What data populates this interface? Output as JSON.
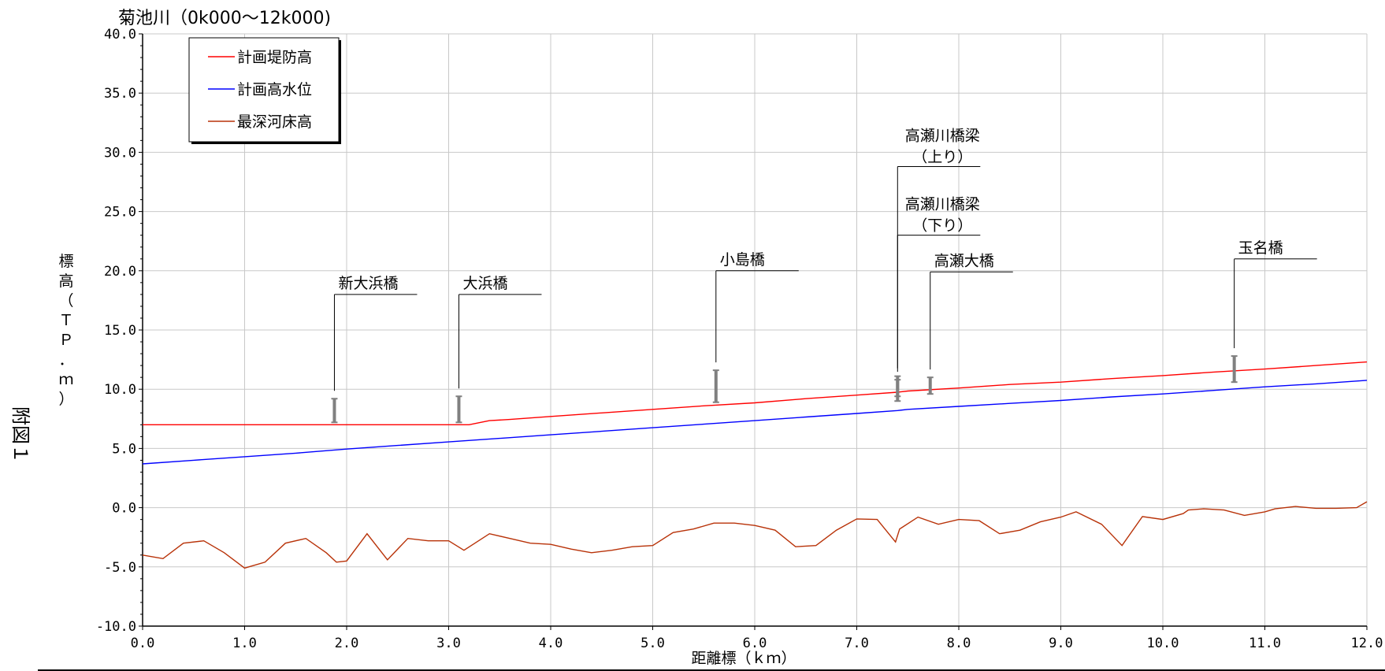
{
  "side_label": "附図１",
  "chart_data": {
    "type": "line",
    "title": "菊池川（0k000～12k000)",
    "xlabel": "距離標（ｋｍ）",
    "ylabel": "標高（ＴＰ．ｍ）",
    "xlim": [
      0,
      12
    ],
    "ylim": [
      -10,
      40
    ],
    "x_ticks": [
      "0.0",
      "1.0",
      "2.0",
      "3.0",
      "4.0",
      "5.0",
      "6.0",
      "7.0",
      "8.0",
      "9.0",
      "10.0",
      "11.0",
      "12.0"
    ],
    "y_ticks": [
      "-10.0",
      "-5.0",
      "0.0",
      "5.0",
      "10.0",
      "15.0",
      "20.0",
      "25.0",
      "30.0",
      "35.0",
      "40.0"
    ],
    "grid": true,
    "legend_position": "top-left",
    "series": [
      {
        "name": "計画堤防高",
        "color": "#ff0000",
        "points": [
          [
            0,
            7.0
          ],
          [
            1,
            7.0
          ],
          [
            2,
            7.0
          ],
          [
            3,
            7.0
          ],
          [
            3.2,
            7.0
          ],
          [
            3.4,
            7.35
          ],
          [
            3.6,
            7.45
          ],
          [
            4.0,
            7.7
          ],
          [
            4.5,
            8.0
          ],
          [
            5.0,
            8.3
          ],
          [
            5.5,
            8.6
          ],
          [
            6.0,
            8.85
          ],
          [
            6.5,
            9.2
          ],
          [
            7.0,
            9.5
          ],
          [
            7.4,
            9.75
          ],
          [
            7.5,
            9.85
          ],
          [
            8.0,
            10.1
          ],
          [
            8.5,
            10.4
          ],
          [
            9.0,
            10.6
          ],
          [
            9.5,
            10.9
          ],
          [
            10.0,
            11.15
          ],
          [
            10.5,
            11.45
          ],
          [
            11.0,
            11.7
          ],
          [
            11.5,
            12.0
          ],
          [
            12.0,
            12.3
          ]
        ]
      },
      {
        "name": "計画高水位",
        "color": "#0000ff",
        "points": [
          [
            0,
            3.7
          ],
          [
            0.5,
            4.0
          ],
          [
            1.0,
            4.3
          ],
          [
            1.5,
            4.6
          ],
          [
            2.0,
            4.95
          ],
          [
            2.5,
            5.25
          ],
          [
            3.0,
            5.55
          ],
          [
            3.5,
            5.85
          ],
          [
            4.0,
            6.15
          ],
          [
            4.5,
            6.45
          ],
          [
            5.0,
            6.75
          ],
          [
            5.5,
            7.05
          ],
          [
            6.0,
            7.35
          ],
          [
            6.5,
            7.65
          ],
          [
            7.0,
            7.95
          ],
          [
            7.4,
            8.2
          ],
          [
            7.5,
            8.3
          ],
          [
            8.0,
            8.55
          ],
          [
            8.5,
            8.8
          ],
          [
            9.0,
            9.05
          ],
          [
            9.5,
            9.35
          ],
          [
            10.0,
            9.6
          ],
          [
            10.5,
            9.9
          ],
          [
            11.0,
            10.2
          ],
          [
            11.5,
            10.45
          ],
          [
            12.0,
            10.75
          ]
        ]
      },
      {
        "name": "最深河床高",
        "color": "#b83208",
        "points": [
          [
            0,
            -4.0
          ],
          [
            0.2,
            -4.3
          ],
          [
            0.4,
            -3.0
          ],
          [
            0.6,
            -2.8
          ],
          [
            0.8,
            -3.8
          ],
          [
            1.0,
            -5.1
          ],
          [
            1.2,
            -4.6
          ],
          [
            1.4,
            -3.0
          ],
          [
            1.6,
            -2.6
          ],
          [
            1.8,
            -3.8
          ],
          [
            1.9,
            -4.6
          ],
          [
            2.0,
            -4.5
          ],
          [
            2.2,
            -2.2
          ],
          [
            2.4,
            -4.4
          ],
          [
            2.6,
            -2.6
          ],
          [
            2.8,
            -2.8
          ],
          [
            3.0,
            -2.8
          ],
          [
            3.15,
            -3.6
          ],
          [
            3.4,
            -2.2
          ],
          [
            3.6,
            -2.6
          ],
          [
            3.8,
            -3.0
          ],
          [
            4.0,
            -3.1
          ],
          [
            4.2,
            -3.5
          ],
          [
            4.4,
            -3.8
          ],
          [
            4.6,
            -3.6
          ],
          [
            4.8,
            -3.3
          ],
          [
            5.0,
            -3.2
          ],
          [
            5.2,
            -2.1
          ],
          [
            5.4,
            -1.8
          ],
          [
            5.6,
            -1.3
          ],
          [
            5.8,
            -1.3
          ],
          [
            6.0,
            -1.5
          ],
          [
            6.2,
            -1.9
          ],
          [
            6.4,
            -3.3
          ],
          [
            6.6,
            -3.2
          ],
          [
            6.8,
            -1.9
          ],
          [
            7.0,
            -0.95
          ],
          [
            7.2,
            -1.0
          ],
          [
            7.38,
            -2.9
          ],
          [
            7.42,
            -1.8
          ],
          [
            7.6,
            -0.8
          ],
          [
            7.8,
            -1.4
          ],
          [
            8.0,
            -1.0
          ],
          [
            8.2,
            -1.1
          ],
          [
            8.4,
            -2.2
          ],
          [
            8.6,
            -1.9
          ],
          [
            8.8,
            -1.2
          ],
          [
            9.0,
            -0.8
          ],
          [
            9.15,
            -0.35
          ],
          [
            9.4,
            -1.4
          ],
          [
            9.6,
            -3.2
          ],
          [
            9.8,
            -0.75
          ],
          [
            10.0,
            -1.0
          ],
          [
            10.2,
            -0.5
          ],
          [
            10.25,
            -0.2
          ],
          [
            10.4,
            -0.1
          ],
          [
            10.6,
            -0.2
          ],
          [
            10.8,
            -0.65
          ],
          [
            11.0,
            -0.35
          ],
          [
            11.1,
            -0.1
          ],
          [
            11.3,
            0.1
          ],
          [
            11.5,
            -0.05
          ],
          [
            11.7,
            -0.05
          ],
          [
            11.9,
            0.0
          ],
          [
            12.0,
            0.5
          ]
        ]
      }
    ],
    "bridges": [
      {
        "name": "新大浜橋",
        "x": 1.88,
        "ybottom": 7.2,
        "ytop": 9.2,
        "label_y": 18.0
      },
      {
        "name": "大浜橋",
        "x": 3.1,
        "ybottom": 7.2,
        "ytop": 9.4,
        "label_y": 18.0
      },
      {
        "name": "小島橋",
        "x": 5.62,
        "ybottom": 8.9,
        "ytop": 11.6,
        "label_y": 20.0
      },
      {
        "name": "高瀬川橋梁",
        "sub": "（下り）",
        "x": 7.4,
        "ybottom": 9.4,
        "ytop": 10.8,
        "label_y": 23.0
      },
      {
        "name": "高瀬川橋梁",
        "sub": "（上り）",
        "x": 7.4,
        "ybottom": 9.0,
        "ytop": 11.1,
        "label_y": 28.8
      },
      {
        "name": "高瀬大橋",
        "x": 7.72,
        "ybottom": 9.6,
        "ytop": 11.0,
        "label_y": 19.9
      },
      {
        "name": "玉名橋",
        "x": 10.7,
        "ybottom": 10.6,
        "ytop": 12.8,
        "label_y": 21.0
      }
    ]
  }
}
